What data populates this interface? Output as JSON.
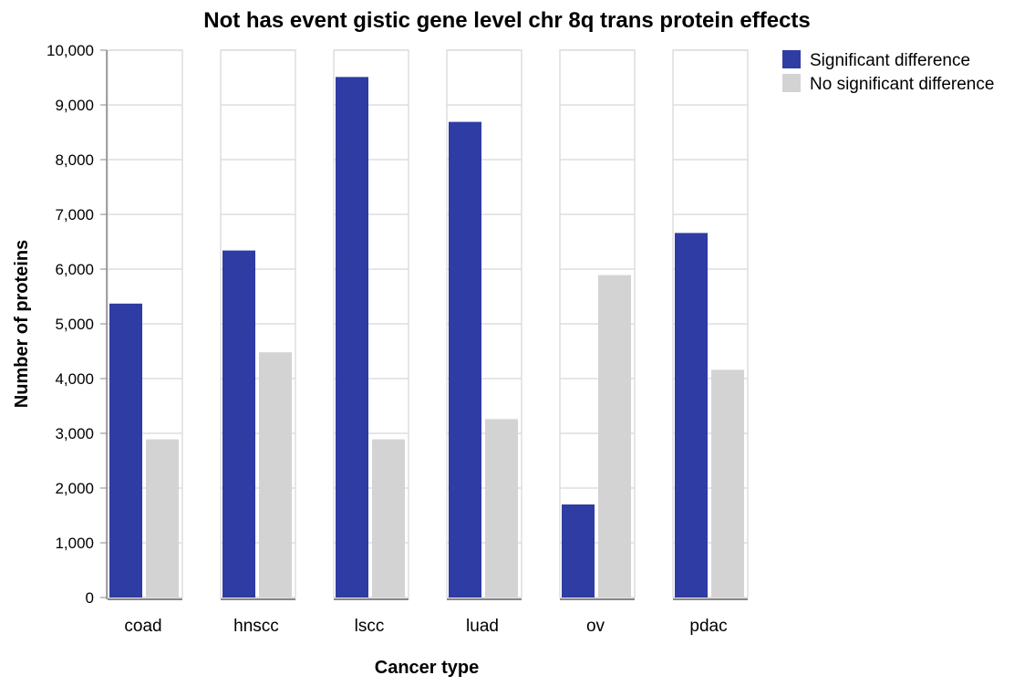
{
  "chart_data": {
    "type": "bar",
    "title": "Not has event gistic gene level chr 8q trans protein effects",
    "xlabel": "Cancer type",
    "ylabel": "Number of proteins",
    "categories": [
      "coad",
      "hnscc",
      "lscc",
      "luad",
      "ov",
      "pdac"
    ],
    "series": [
      {
        "name": "Significant difference",
        "color": "#2e3ca3",
        "values": [
          5370,
          6340,
          9510,
          8690,
          1700,
          6660
        ]
      },
      {
        "name": "No significant difference",
        "color": "#d3d3d3",
        "values": [
          2890,
          4480,
          2890,
          3260,
          5890,
          4160
        ]
      }
    ],
    "ylim": [
      0,
      10000
    ],
    "yticks": [
      "0",
      "1,000",
      "2,000",
      "3,000",
      "4,000",
      "5,000",
      "6,000",
      "7,000",
      "8,000",
      "9,000",
      "10,000"
    ],
    "grid": true,
    "legend_position": "top-right"
  }
}
